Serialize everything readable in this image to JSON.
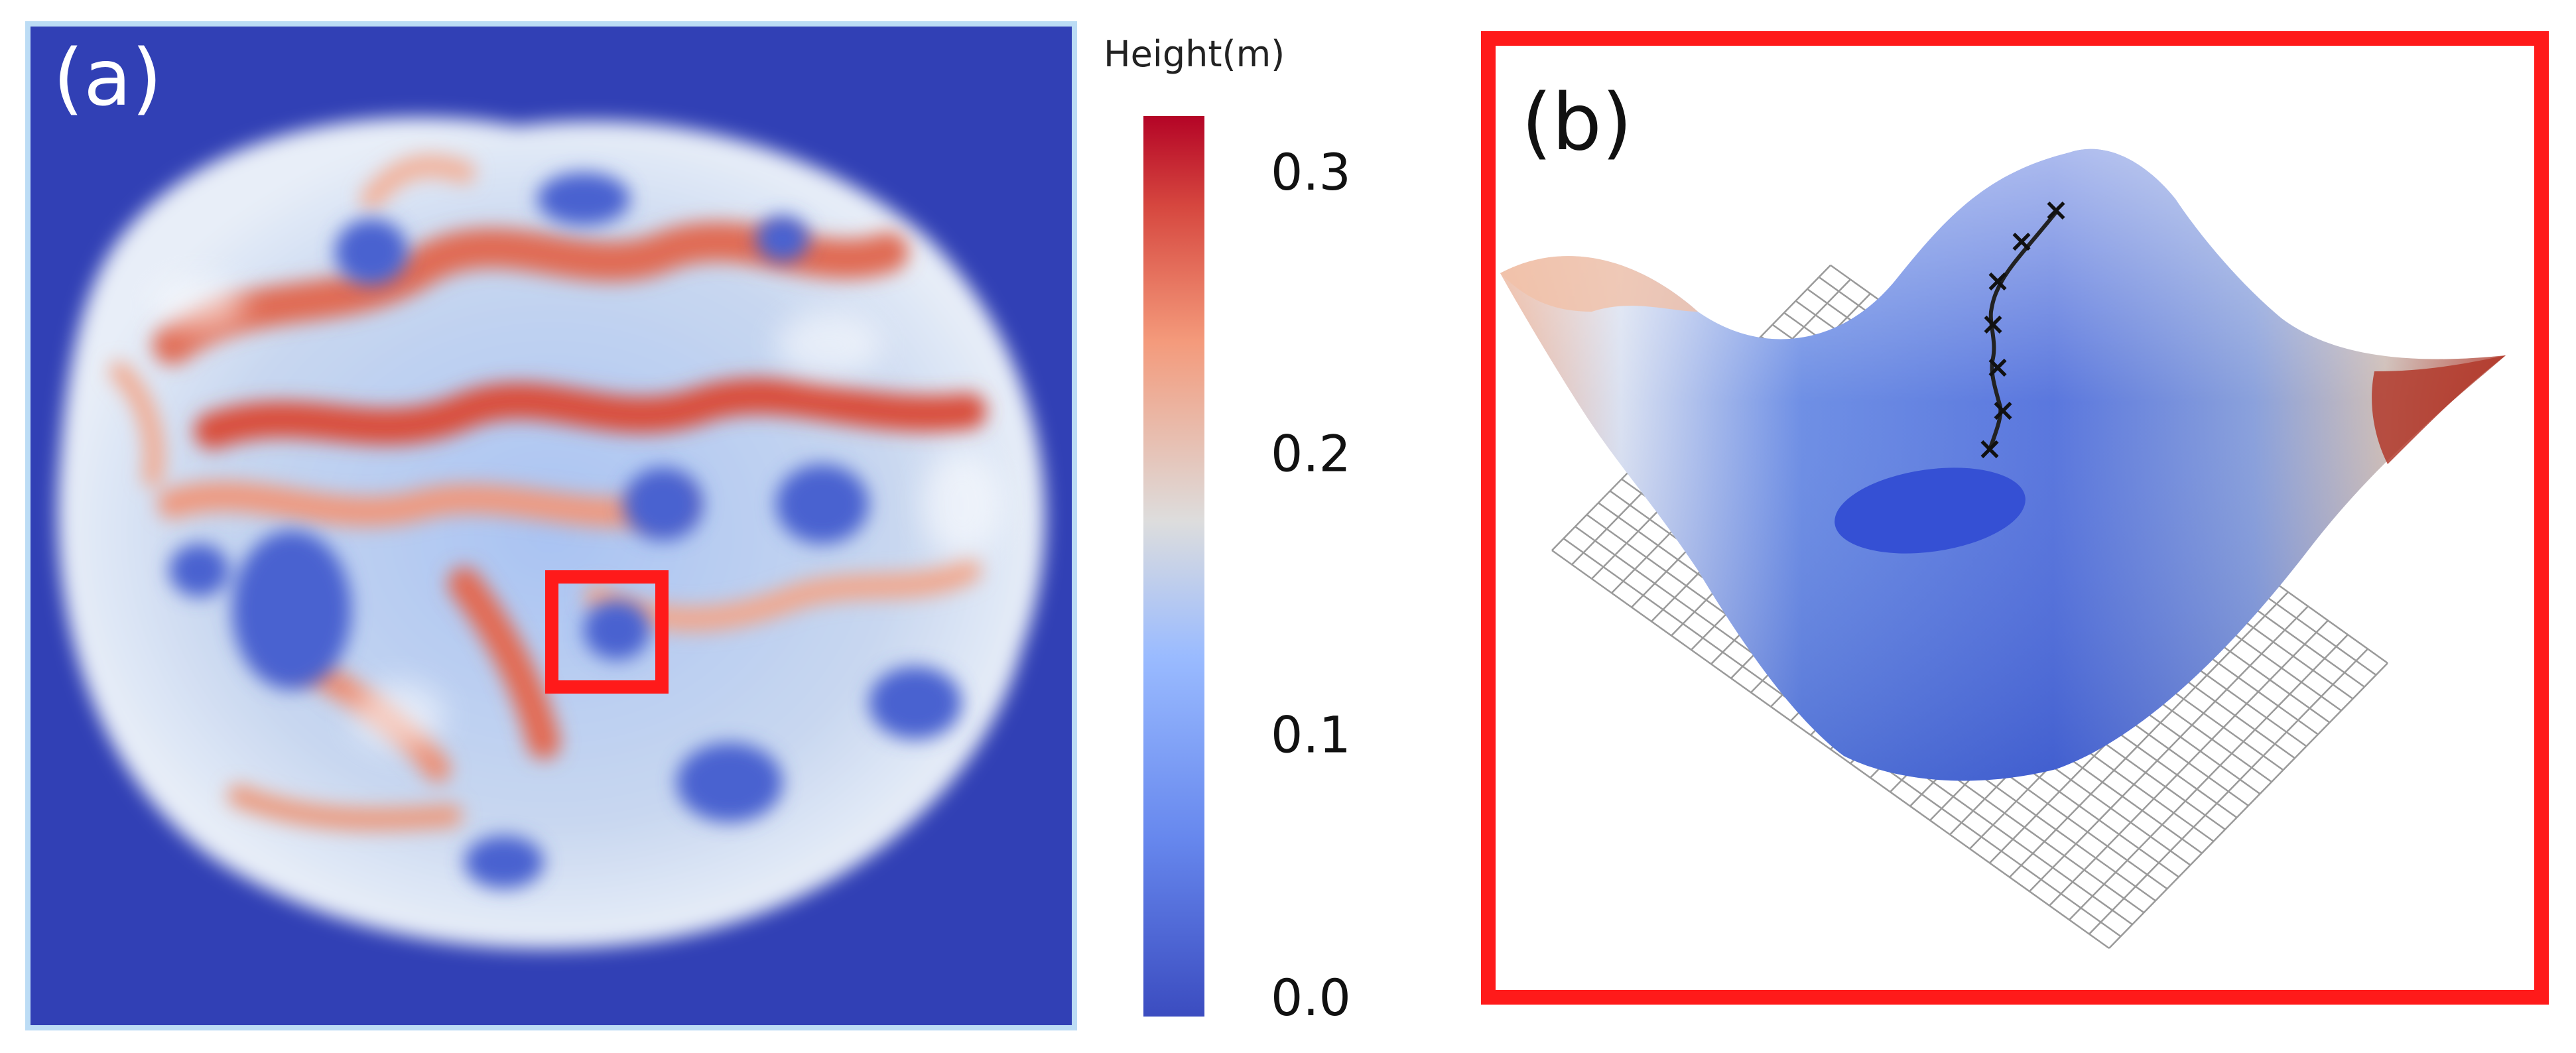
{
  "panel_a": {
    "label": "(a)",
    "frame_color": "#bcdcf5",
    "background_color": "#3140b5",
    "highlight_box_color": "#ff1a1a"
  },
  "colorbar": {
    "title": "Height(m)",
    "ticks": [
      "0.3",
      "0.2",
      "0.1",
      "0.0"
    ],
    "tick_values": [
      0.3,
      0.2,
      0.1,
      0.0
    ],
    "range": [
      0.0,
      0.32
    ],
    "colors": {
      "low": "#3b4cc0",
      "mid": "#dddddd",
      "high": "#b40426"
    }
  },
  "panel_b": {
    "label": "(b)",
    "frame_color": "#ff1a1a",
    "path_marker": "×",
    "path_marker_count": 7
  }
}
